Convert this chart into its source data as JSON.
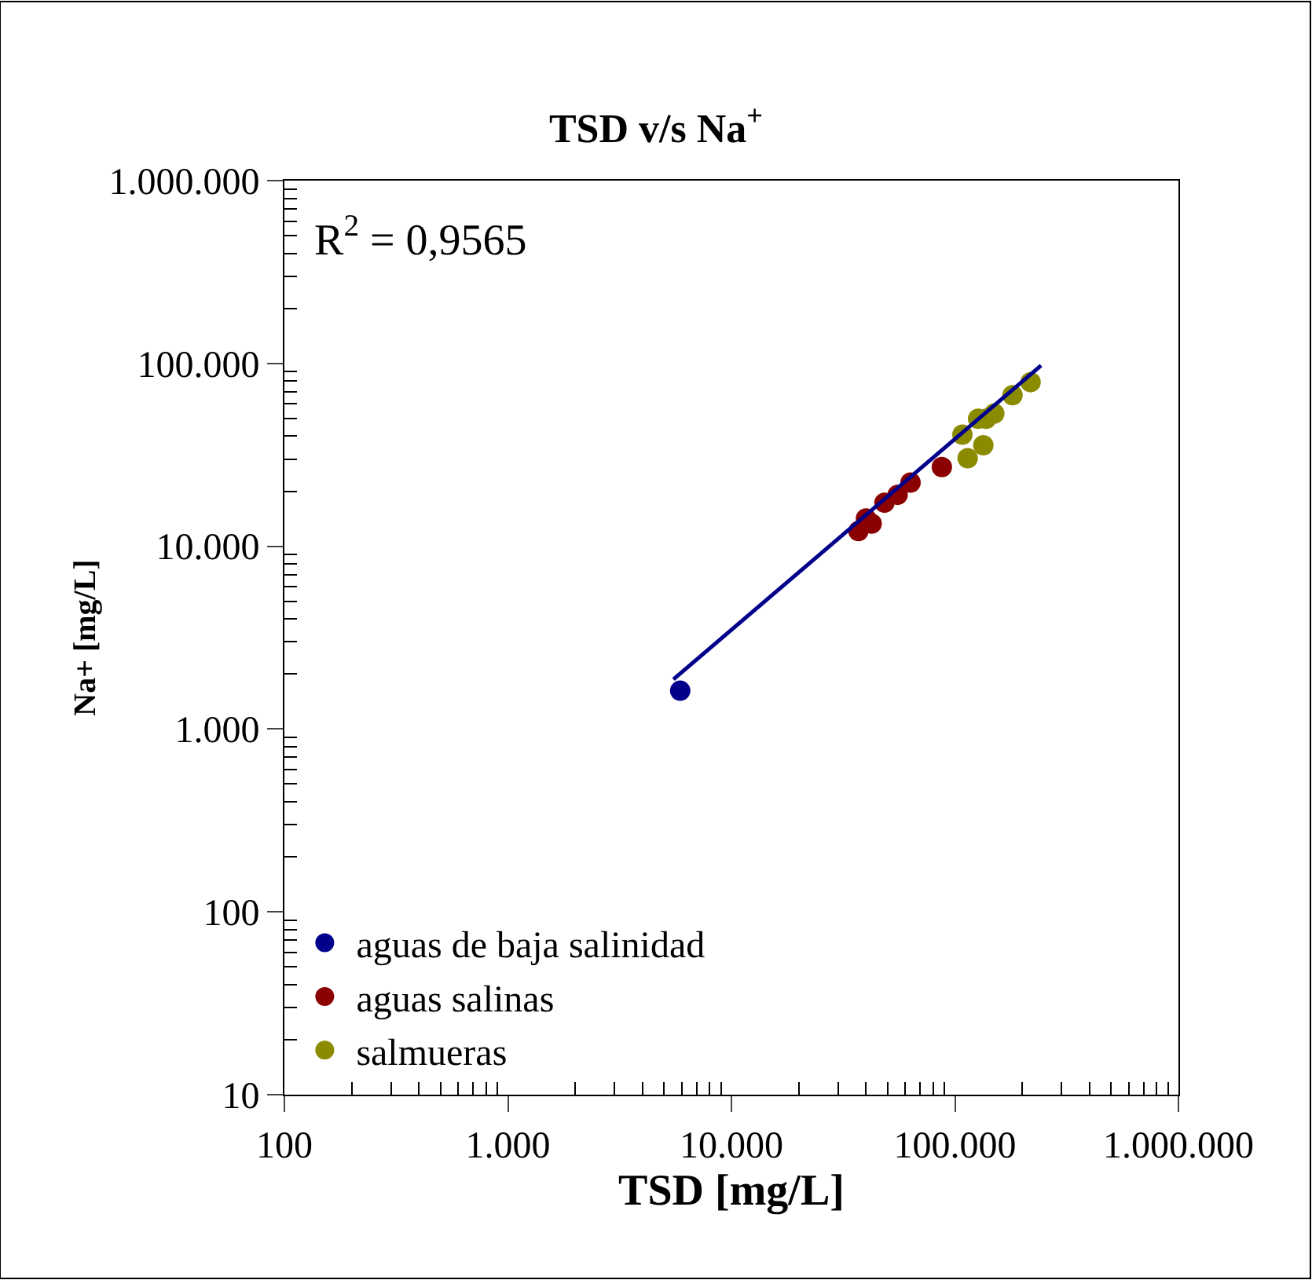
{
  "chart_data": {
    "type": "scatter",
    "title": "TSD v/s Na$^{+}$",
    "xlabel": "TSD [mg/L]",
    "ylabel": "Na+ [mg/L]",
    "log": "xy",
    "xlim": [
      100,
      1000000
    ],
    "ylim": [
      10,
      1000000
    ],
    "xticks": [
      100,
      {
        "value": 1000,
        "label": "1.000"
      },
      {
        "value": 10000,
        "label": "10.000"
      },
      {
        "value": 100000,
        "label": "100.000"
      },
      {
        "value": 1000000,
        "label": "1.000.000"
      }
    ],
    "yticks": [
      10,
      100,
      {
        "value": 1000,
        "label": "1.000"
      },
      {
        "value": 10000,
        "label": "10.000"
      },
      {
        "value": 100000,
        "label": "100.000"
      },
      {
        "value": 1000000,
        "label": "1.000.000"
      }
    ],
    "legend": "bottom left",
    "marker": "circle",
    "annotations": [
      "R$^{2}$ = 0,9565"
    ],
    "series": [
      {
        "name": "aguas de baja salinidad",
        "color": "#00008b",
        "x": [
          5900
        ],
        "values": [
          1620
        ]
      },
      {
        "name": "aguas salinas",
        "color": "#8b0000",
        "x": [
          37000,
          40000,
          42400,
          48400,
          55400,
          63300,
          87400
        ],
        "values": [
          12100,
          14200,
          13300,
          17300,
          19100,
          22300,
          27100
        ]
      },
      {
        "name": "salmueras",
        "color": "#8b8b00",
        "x": [
          108000,
          114000,
          127000,
          134000,
          138000,
          150000,
          181000,
          218000
        ],
        "values": [
          40800,
          30300,
          49800,
          35700,
          49800,
          53200,
          67000,
          79000
        ]
      },
      {
        "type": "line",
        "color": "#00008b",
        "marker": "none",
        "x": [
          5500,
          243000
        ],
        "values": [
          1870,
          97500
        ]
      }
    ]
  }
}
